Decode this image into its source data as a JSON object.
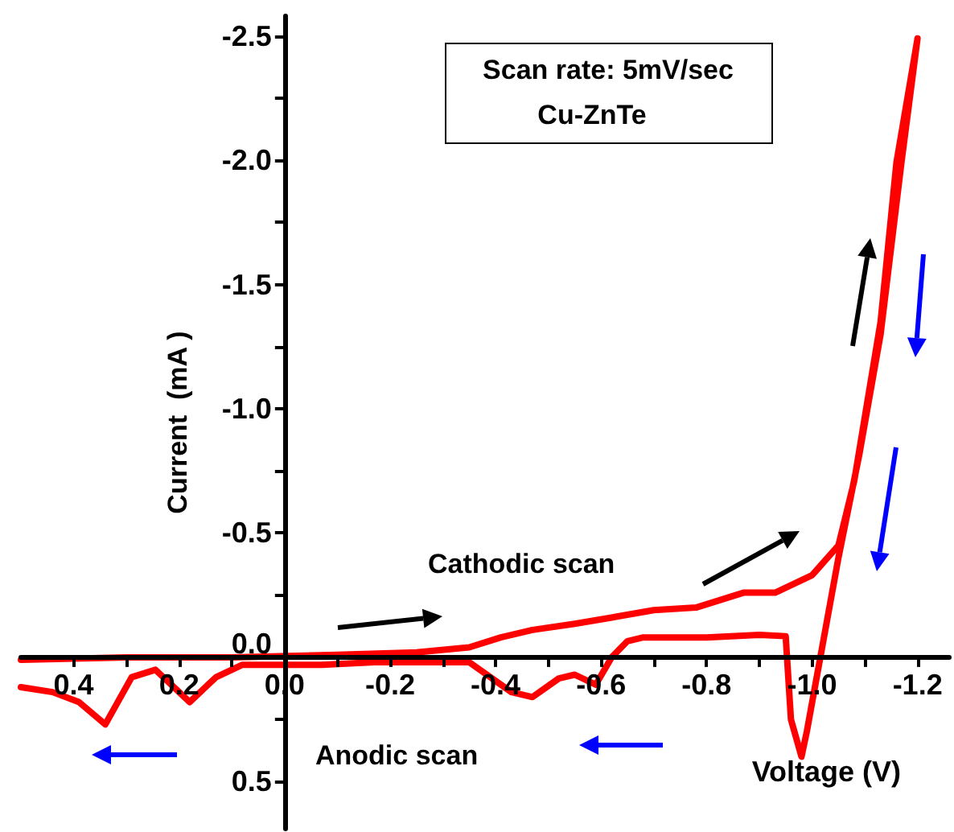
{
  "chart_data": {
    "type": "line",
    "xlabel": "Voltage (V)",
    "ylabel": "Current  (mA )",
    "annotations": [
      "Scan rate: 5mV/sec",
      "Cu-ZnTe",
      "Cathodic scan",
      "Anodic scan"
    ],
    "x": [
      0.5,
      0.3,
      0.1,
      -0.1,
      -0.25,
      -0.35,
      -0.41,
      -0.47,
      -0.55,
      -0.62,
      -0.7,
      -0.78,
      -0.87,
      -0.93,
      -1.0,
      -1.05,
      -1.08,
      -1.13,
      -1.16,
      -1.2,
      -1.17,
      -1.13,
      -1.09,
      -1.05,
      -1.02,
      -0.99,
      -0.98,
      -0.96,
      -0.95,
      -0.9,
      -0.8,
      -0.68,
      -0.65,
      -0.62,
      -0.59,
      -0.55,
      -0.52,
      -0.47,
      -0.43,
      -0.35,
      -0.17,
      -0.07,
      0.08,
      0.13,
      0.18,
      0.23,
      0.245,
      0.29,
      0.34,
      0.39,
      0.44,
      0.5
    ],
    "series": [
      {
        "color": "#ff0000",
        "values": [
          0.01,
          0.0,
          0.0,
          -0.01,
          -0.02,
          -0.04,
          -0.08,
          -0.11,
          -0.135,
          -0.16,
          -0.19,
          -0.2,
          -0.26,
          -0.26,
          -0.33,
          -0.45,
          -0.71,
          -1.35,
          -1.99,
          -2.49,
          -2.0,
          -1.3,
          -0.82,
          -0.4,
          -0.05,
          0.3,
          0.4,
          0.25,
          -0.085,
          -0.09,
          -0.08,
          -0.08,
          -0.065,
          0.0,
          0.11,
          0.07,
          0.085,
          0.16,
          0.14,
          0.02,
          0.02,
          0.03,
          0.03,
          0.08,
          0.18,
          0.08,
          0.05,
          0.08,
          0.27,
          0.18,
          0.14,
          0.12
        ]
      }
    ],
    "xlim": [
      0.5,
      -1.26
    ],
    "ylim": [
      0.69,
      -2.58
    ],
    "xticks": [
      {
        "value": 0.4,
        "label": "0.4"
      },
      {
        "value": 0.3,
        "label": null
      },
      {
        "value": 0.2,
        "label": "0.2"
      },
      {
        "value": 0.1,
        "label": null
      },
      {
        "value": 0,
        "label": "0.0"
      },
      {
        "value": -0.1,
        "label": null
      },
      {
        "value": -0.2,
        "label": "-0.2"
      },
      {
        "value": -0.3,
        "label": null
      },
      {
        "value": -0.4,
        "label": "-0.4"
      },
      {
        "value": -0.5,
        "label": null
      },
      {
        "value": -0.6,
        "label": "-0.6"
      },
      {
        "value": -0.7,
        "label": null
      },
      {
        "value": -0.8,
        "label": "-0.8"
      },
      {
        "value": -0.9,
        "label": null
      },
      {
        "value": -1.0,
        "label": "-1.0"
      },
      {
        "value": -1.1,
        "label": null
      },
      {
        "value": -1.2,
        "label": "-1.2"
      }
    ],
    "yticks": [
      {
        "value": -2.5,
        "label": "-2.5"
      },
      {
        "value": -2.25,
        "label": null
      },
      {
        "value": -2.0,
        "label": "-2.0"
      },
      {
        "value": -1.75,
        "label": null
      },
      {
        "value": -1.5,
        "label": "-1.5"
      },
      {
        "value": -1.25,
        "label": null
      },
      {
        "value": -1.0,
        "label": "-1.0"
      },
      {
        "value": -0.75,
        "label": null
      },
      {
        "value": -0.5,
        "label": "-0.5"
      },
      {
        "value": -0.25,
        "label": null
      },
      {
        "value": 0,
        "label": "0.0"
      },
      {
        "value": 0.25,
        "label": null
      },
      {
        "value": 0.5,
        "label": "0.5"
      }
    ],
    "marker": "none",
    "line_style": "solid"
  }
}
